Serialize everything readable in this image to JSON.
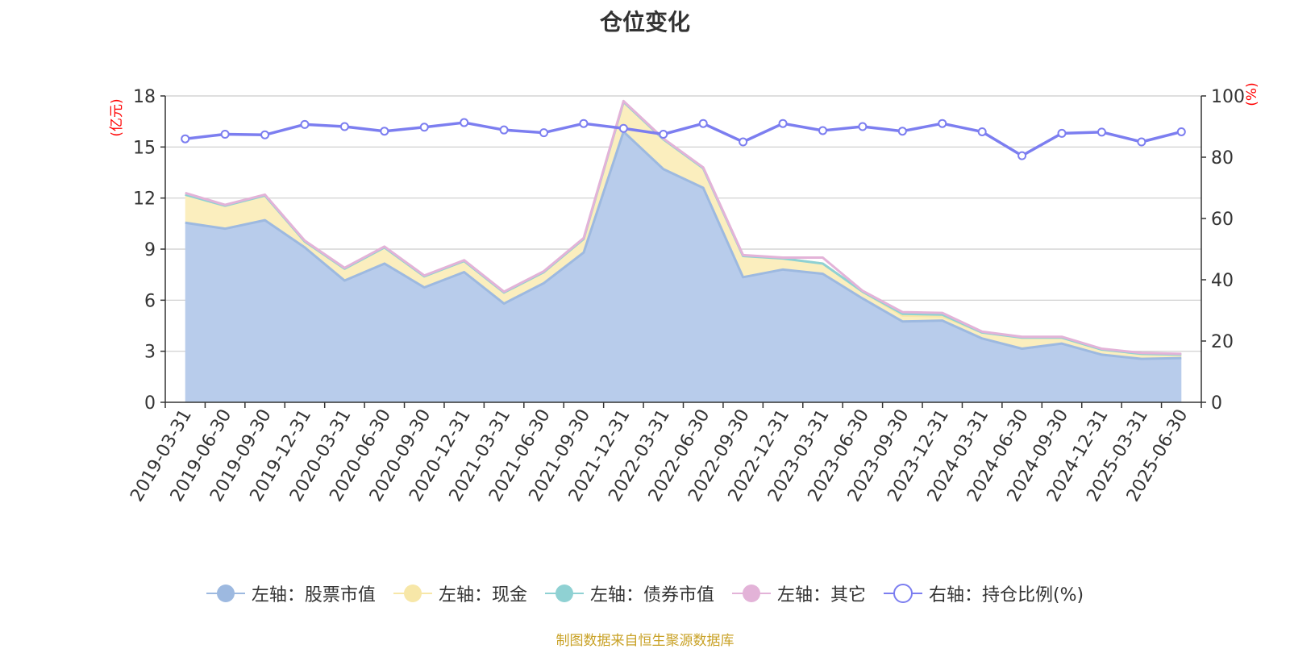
{
  "title": "仓位变化",
  "source_note": "制图数据来自恒生聚源数据库",
  "colors": {
    "stock": "#9db9e0",
    "stock_fill": "#b8cceb",
    "cash": "#f7e7a8",
    "cash_fill": "#fbeebe",
    "bond": "#8fd1d3",
    "other": "#e3b3d8",
    "ratio": "#7c7ef0",
    "grid": "#cccccc",
    "axis": "#333333",
    "unit": "#ff0000"
  },
  "legend": [
    {
      "label": "左轴：股票市值",
      "icon": "filled-circle-icon",
      "color": "#9db9e0"
    },
    {
      "label": "左轴：现金",
      "icon": "filled-circle-icon",
      "color": "#f7e7a8"
    },
    {
      "label": "左轴：债券市值",
      "icon": "filled-circle-icon",
      "color": "#8fd1d3"
    },
    {
      "label": "左轴：其它",
      "icon": "filled-circle-icon",
      "color": "#e3b3d8"
    },
    {
      "label": "右轴：持仓比例(%)",
      "icon": "hollow-circle-icon",
      "color": "#7c7ef0"
    }
  ],
  "chart_data": {
    "type": "area",
    "title": "仓位变化",
    "categories": [
      "2019-03-31",
      "2019-06-30",
      "2019-09-30",
      "2019-12-31",
      "2020-03-31",
      "2020-06-30",
      "2020-09-30",
      "2020-12-31",
      "2021-03-31",
      "2021-06-30",
      "2021-09-30",
      "2021-12-31",
      "2022-03-31",
      "2022-06-30",
      "2022-09-30",
      "2022-12-31",
      "2023-03-31",
      "2023-06-30",
      "2023-09-30",
      "2023-12-31",
      "2024-03-31",
      "2024-06-30",
      "2024-09-30",
      "2024-12-31",
      "2025-03-31",
      "2025-06-30"
    ],
    "left_axis": {
      "unit": "(亿元)",
      "ylim": [
        0,
        18
      ],
      "ticks": [
        0,
        3,
        6,
        9,
        12,
        15,
        18
      ]
    },
    "right_axis": {
      "unit": "(%)",
      "ylim": [
        0,
        100
      ],
      "ticks": [
        0,
        20,
        40,
        60,
        80,
        100
      ]
    },
    "grid": true,
    "legend_position": "bottom",
    "series": [
      {
        "name": "左轴：股票市值",
        "axis": "left",
        "stack": "left",
        "values": [
          10.55,
          10.2,
          10.7,
          9.1,
          7.15,
          8.15,
          6.75,
          7.65,
          5.8,
          7.0,
          8.8,
          15.9,
          13.7,
          12.6,
          7.35,
          7.8,
          7.55,
          6.1,
          4.75,
          4.8,
          3.75,
          3.15,
          3.45,
          2.8,
          2.55,
          2.6
        ]
      },
      {
        "name": "左轴：现金",
        "axis": "left",
        "stack": "left",
        "values": [
          1.65,
          1.35,
          1.45,
          0.35,
          0.7,
          0.95,
          0.65,
          0.65,
          0.65,
          0.65,
          0.8,
          1.75,
          1.75,
          1.15,
          1.25,
          0.65,
          0.6,
          0.4,
          0.35,
          0.25,
          0.35,
          0.65,
          0.35,
          0.3,
          0.3,
          0.2
        ]
      },
      {
        "name": "左轴：债券市值",
        "axis": "left",
        "stack": "left",
        "values": [
          0,
          0,
          0,
          0,
          0,
          0,
          0,
          0,
          0,
          0,
          0,
          0,
          0,
          0,
          0,
          0,
          0,
          0,
          0.1,
          0.1,
          0,
          0,
          0,
          0,
          0,
          0
        ]
      },
      {
        "name": "左轴：其它",
        "axis": "left",
        "stack": "left",
        "values": [
          0.1,
          0.05,
          0.05,
          0.05,
          0.05,
          0.05,
          0.05,
          0.05,
          0.05,
          0.05,
          0.05,
          0.05,
          0.05,
          0.05,
          0.05,
          0.05,
          0.35,
          0.05,
          0.1,
          0.1,
          0.05,
          0.05,
          0.05,
          0.05,
          0.05,
          0.05
        ]
      },
      {
        "name": "右轴：持仓比例(%)",
        "axis": "right",
        "type": "line",
        "values": [
          86,
          87.5,
          87.3,
          90.7,
          90,
          88.5,
          89.8,
          91.3,
          88.9,
          88,
          91,
          89.4,
          87.5,
          91,
          85,
          91,
          88.7,
          90,
          88.5,
          91,
          88.3,
          80.5,
          87.8,
          88.2,
          85,
          88.3
        ]
      }
    ]
  }
}
